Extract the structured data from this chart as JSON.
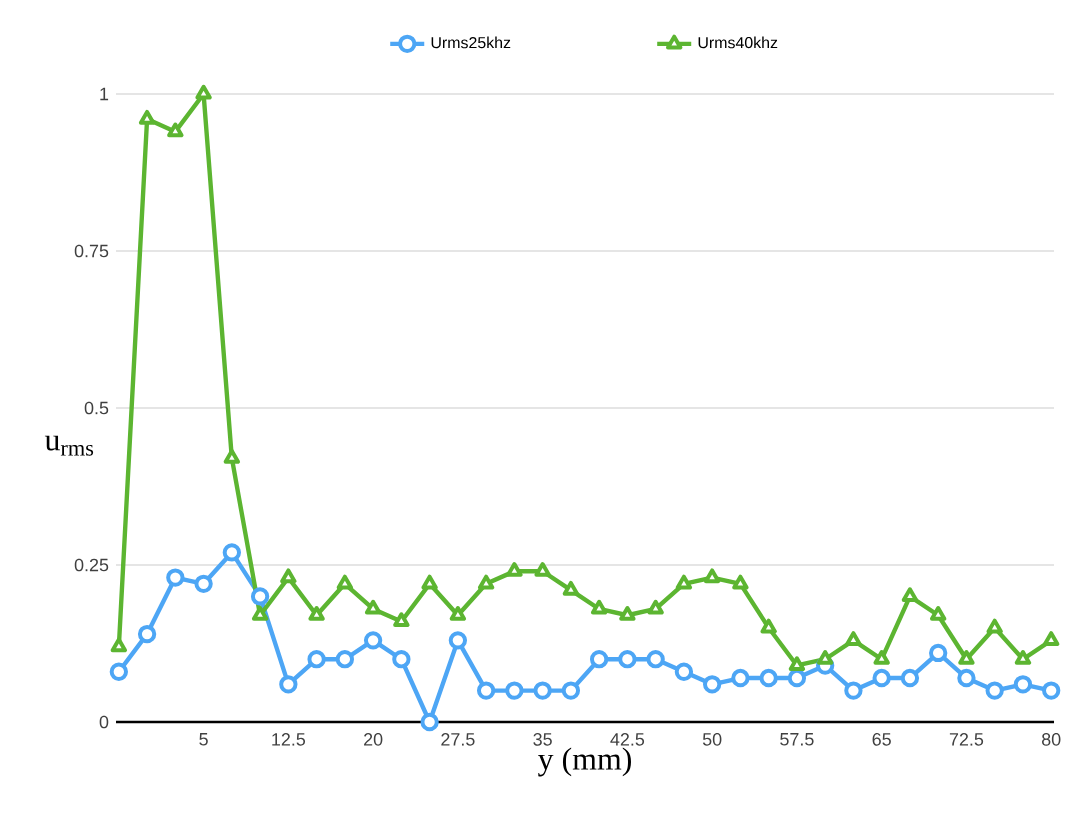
{
  "chart_data": {
    "type": "line",
    "xlabel": "y (mm)",
    "ylabel": "u$_{rms}$",
    "categories": [
      null,
      null,
      null,
      "5",
      null,
      null,
      "12.5",
      null,
      null,
      "20",
      null,
      null,
      "27.5",
      null,
      null,
      "35",
      null,
      null,
      "42.5",
      null,
      null,
      "50",
      null,
      null,
      "57.5",
      null,
      null,
      "65",
      null,
      null,
      "72.5",
      null,
      null,
      "80"
    ],
    "series": [
      {
        "name": "Urms25khz",
        "color": "#4da6f5",
        "marker": "circle",
        "values": [
          0.08,
          0.14,
          0.23,
          0.22,
          0.27,
          0.2,
          0.06,
          0.1,
          0.1,
          0.13,
          0.1,
          0,
          0.13,
          0.05,
          0.05,
          0.05,
          0.05,
          0.1,
          0.1,
          0.1,
          0.08,
          0.06,
          0.07,
          0.07,
          0.07,
          0.09,
          0.05,
          0.07,
          0.07,
          0.11,
          0.07,
          0.05,
          0.06,
          0.05
        ]
      },
      {
        "name": "Urms40khz",
        "color": "#5cb531",
        "marker": "triangle",
        "values": [
          0.12,
          0.96,
          0.94,
          1.0,
          0.42,
          0.17,
          0.23,
          0.17,
          0.22,
          0.18,
          0.16,
          0.22,
          0.17,
          0.22,
          0.24,
          0.24,
          0.21,
          0.18,
          0.17,
          0.18,
          0.22,
          0.23,
          0.22,
          0.15,
          0.09,
          0.1,
          0.13,
          0.1,
          0.2,
          0.17,
          0.1,
          0.15,
          0.1,
          0.13
        ]
      }
    ],
    "ylim": [
      0,
      1
    ],
    "yticks": [
      0,
      0.25,
      0.5,
      0.75,
      1
    ],
    "grid": "y",
    "legend": "top",
    "line_style": "solid"
  }
}
